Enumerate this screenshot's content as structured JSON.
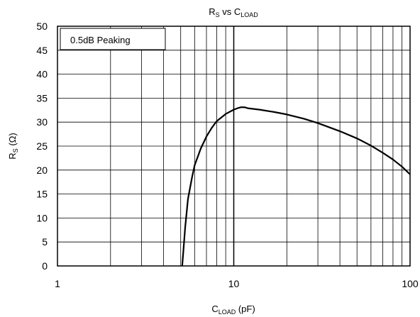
{
  "chart_data": {
    "type": "line",
    "title": {
      "main": "R",
      "main_sub": "S",
      "mid": " vs C",
      "mid_sub": "LOAD"
    },
    "xlabel": {
      "main": "C",
      "sub": "LOAD",
      "rest": " (pF)"
    },
    "ylabel": {
      "main": "R",
      "sub": "S",
      "rest": " (Ω)"
    },
    "x_scale": "log",
    "xlim": [
      1,
      100
    ],
    "ylim": [
      0,
      50
    ],
    "x_ticks": [
      1,
      10,
      100
    ],
    "y_ticks": [
      0,
      5,
      10,
      15,
      20,
      25,
      30,
      35,
      40,
      45,
      50
    ],
    "grid": true,
    "annotation": "0.5dB Peaking",
    "colors": {
      "line": "#000000",
      "grid": "#000000",
      "background": "#ffffff"
    },
    "series": [
      {
        "x": [
          5.1,
          5.2,
          5.3,
          5.5,
          5.8,
          6.0,
          6.5,
          7.0,
          7.5,
          8.0,
          9.0,
          10.0,
          10.5,
          11.0,
          11.5,
          12.0,
          14.0,
          17.0,
          20.0,
          25.0,
          30.0,
          40.0,
          50.0,
          60.0,
          70.0,
          80.0,
          90.0,
          100.0
        ],
        "y": [
          0,
          4,
          8,
          14,
          18.5,
          21,
          24.5,
          27,
          28.8,
          30.2,
          31.7,
          32.6,
          32.9,
          33.1,
          33.1,
          32.9,
          32.6,
          32.1,
          31.6,
          30.7,
          29.8,
          28.1,
          26.6,
          25.1,
          23.6,
          22.2,
          20.7,
          19.1
        ]
      }
    ]
  }
}
